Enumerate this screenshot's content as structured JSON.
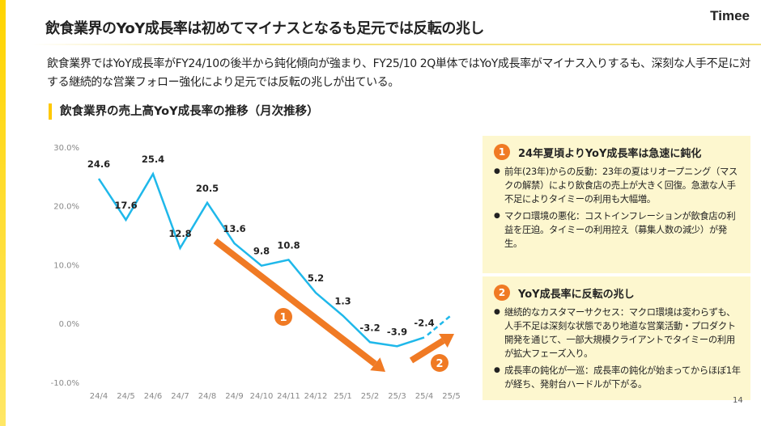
{
  "header": {
    "title": "飲食業界のYoY成長率は初めてマイナスとなるも足元では反転の兆し",
    "logo": "Timee"
  },
  "lead": "飲食業界ではYoY成長率がFY24/10の後半から鈍化傾向が強まり、FY25/10 2Q単体ではYoY成長率がマイナス入りするも、深刻な人手不足に対する継続的な営業フォロー強化により足元では反転の兆しが出ている。",
  "chart_data": {
    "type": "line",
    "title": "飲食業界の売上高YoY成長率の推移（月次推移）",
    "categories": [
      "24/4",
      "24/5",
      "24/6",
      "24/7",
      "24/8",
      "24/9",
      "24/10",
      "24/11",
      "24/12",
      "25/1",
      "25/2",
      "25/3",
      "25/4",
      "25/5"
    ],
    "values": [
      24.6,
      17.6,
      25.4,
      12.8,
      20.5,
      13.6,
      9.8,
      10.8,
      5.2,
      1.3,
      -3.2,
      -3.9,
      -2.4,
      1.4
    ],
    "data_labels": [
      "24.6",
      "17.6",
      "25.4",
      "12.8",
      "20.5",
      "13.6",
      "9.8",
      "10.8",
      "5.2",
      "1.3",
      "-3.2",
      "-3.9",
      "-2.4",
      ""
    ],
    "dashed_from": "25/4",
    "yticks": [
      "30.0%",
      "20.0%",
      "10.0%",
      "0.0%",
      "-10.0%"
    ],
    "ylim": [
      -10,
      30
    ],
    "grid": false,
    "line_color": "#1fb8ea",
    "annotation_color": "#f07a24",
    "annotations": [
      "1",
      "2"
    ]
  },
  "panels": [
    {
      "num": "1",
      "title": "24年夏頃よりYoY成長率は急速に鈍化",
      "items": [
        "前年(23年)からの反動：23年の夏はリオープニング（マスクの解禁）により飲食店の売上が大きく回復。急激な人手不足によりタイミーの利用も大幅増。",
        "マクロ環境の悪化：コストインフレーションが飲食店の利益を圧迫。タイミーの利用控え（募集人数の減少）が発生。"
      ]
    },
    {
      "num": "2",
      "title": "YoY成長率に反転の兆し",
      "items": [
        "継続的なカスタマーサクセス：マクロ環境は変わらずも、人手不足は深刻な状態であり地道な営業活動・プロダクト開発を通じて、一部大規模クライアントでタイミーの利用が拡大フェーズ入り。",
        "成長率の鈍化が一巡：成長率の鈍化が始まってからほぼ1年が経ち、発射台ハードルが下がる。"
      ]
    }
  ],
  "page_number": "14"
}
